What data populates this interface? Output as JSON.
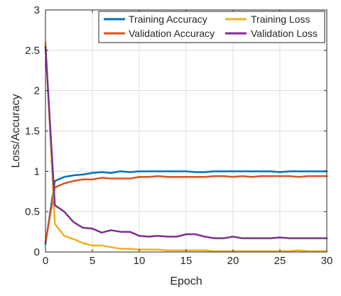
{
  "chart_data": {
    "type": "line",
    "title": "",
    "xlabel": "Epoch",
    "ylabel": "Loss/Accuracy",
    "xlim": [
      0,
      30
    ],
    "ylim": [
      0,
      3
    ],
    "xticks": [
      0,
      5,
      10,
      15,
      20,
      25,
      30
    ],
    "yticks": [
      0,
      0.5,
      1,
      1.5,
      2,
      2.5,
      3
    ],
    "ytick_labels": [
      "0",
      "0.5",
      "1",
      "1.5",
      "2",
      "2.5",
      "3"
    ],
    "grid": true,
    "legend": {
      "placement": "top-right",
      "columns": 2
    },
    "x": [
      0,
      1,
      2,
      3,
      4,
      5,
      6,
      7,
      8,
      9,
      10,
      11,
      12,
      13,
      14,
      15,
      16,
      17,
      18,
      19,
      20,
      21,
      22,
      23,
      24,
      25,
      26,
      27,
      28,
      29,
      30
    ],
    "series": [
      {
        "name": "Training Accuracy",
        "color": "#0072BD",
        "values": [
          0.1,
          0.88,
          0.93,
          0.95,
          0.96,
          0.98,
          0.99,
          0.98,
          1.0,
          0.99,
          1.0,
          1.0,
          1.0,
          1.0,
          1.0,
          1.0,
          0.99,
          0.99,
          1.0,
          1.0,
          1.0,
          1.0,
          1.0,
          1.0,
          1.0,
          0.99,
          1.0,
          1.0,
          1.0,
          1.0,
          1.0
        ]
      },
      {
        "name": "Validation Accuracy",
        "color": "#D95319",
        "values": [
          0.12,
          0.8,
          0.85,
          0.88,
          0.9,
          0.9,
          0.92,
          0.91,
          0.91,
          0.91,
          0.93,
          0.93,
          0.94,
          0.93,
          0.93,
          0.93,
          0.93,
          0.93,
          0.94,
          0.94,
          0.93,
          0.94,
          0.93,
          0.94,
          0.94,
          0.94,
          0.94,
          0.93,
          0.94,
          0.94,
          0.94
        ]
      },
      {
        "name": "Training Loss",
        "color": "#EDB120",
        "values": [
          2.6,
          0.35,
          0.2,
          0.16,
          0.11,
          0.08,
          0.08,
          0.06,
          0.04,
          0.04,
          0.03,
          0.03,
          0.03,
          0.02,
          0.02,
          0.02,
          0.02,
          0.02,
          0.01,
          0.01,
          0.01,
          0.01,
          0.01,
          0.01,
          0.01,
          0.01,
          0.01,
          0.02,
          0.01,
          0.01,
          0.01
        ]
      },
      {
        "name": "Validation Loss",
        "color": "#7E2F8E",
        "values": [
          2.55,
          0.58,
          0.5,
          0.37,
          0.3,
          0.29,
          0.24,
          0.27,
          0.25,
          0.25,
          0.2,
          0.19,
          0.2,
          0.19,
          0.19,
          0.22,
          0.22,
          0.19,
          0.17,
          0.17,
          0.19,
          0.17,
          0.17,
          0.17,
          0.17,
          0.18,
          0.17,
          0.17,
          0.17,
          0.17,
          0.17
        ]
      }
    ]
  }
}
